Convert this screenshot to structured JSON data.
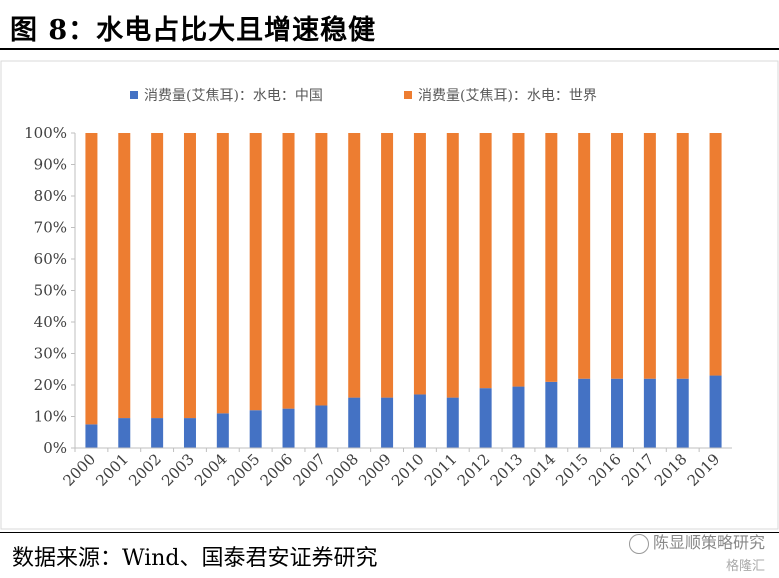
{
  "figure": {
    "title": "图 8：水电占比大且增速稳健",
    "source": "数据来源：Wind、国泰君安证券研究",
    "watermark": "陈显顺策略研究",
    "watermark_sub": "格隆汇"
  },
  "chart_data": {
    "type": "bar",
    "stacked": "percent",
    "categories": [
      "2000",
      "2001",
      "2002",
      "2003",
      "2004",
      "2005",
      "2006",
      "2007",
      "2008",
      "2009",
      "2010",
      "2011",
      "2012",
      "2013",
      "2014",
      "2015",
      "2016",
      "2017",
      "2018",
      "2019"
    ],
    "series": [
      {
        "name": "消费量(艾焦耳)：水电：中国",
        "color": "#4472c4",
        "values": [
          7.5,
          9.5,
          9.5,
          9.5,
          11,
          12,
          12.5,
          13.5,
          16,
          16,
          17,
          16,
          19,
          19.5,
          21,
          22,
          22,
          22,
          22,
          23
        ]
      },
      {
        "name": "消费量(艾焦耳)：水电：世界",
        "color": "#ed7d31",
        "values": [
          92.5,
          90.5,
          90.5,
          90.5,
          89,
          88,
          87.5,
          86.5,
          84,
          84,
          83,
          84,
          81,
          80.5,
          79,
          78,
          78,
          78,
          78,
          77
        ]
      }
    ],
    "ylim": [
      0,
      100
    ],
    "yticks": [
      "0%",
      "10%",
      "20%",
      "30%",
      "40%",
      "50%",
      "60%",
      "70%",
      "80%",
      "90%",
      "100%"
    ],
    "legend_position": "top",
    "grid": false
  }
}
